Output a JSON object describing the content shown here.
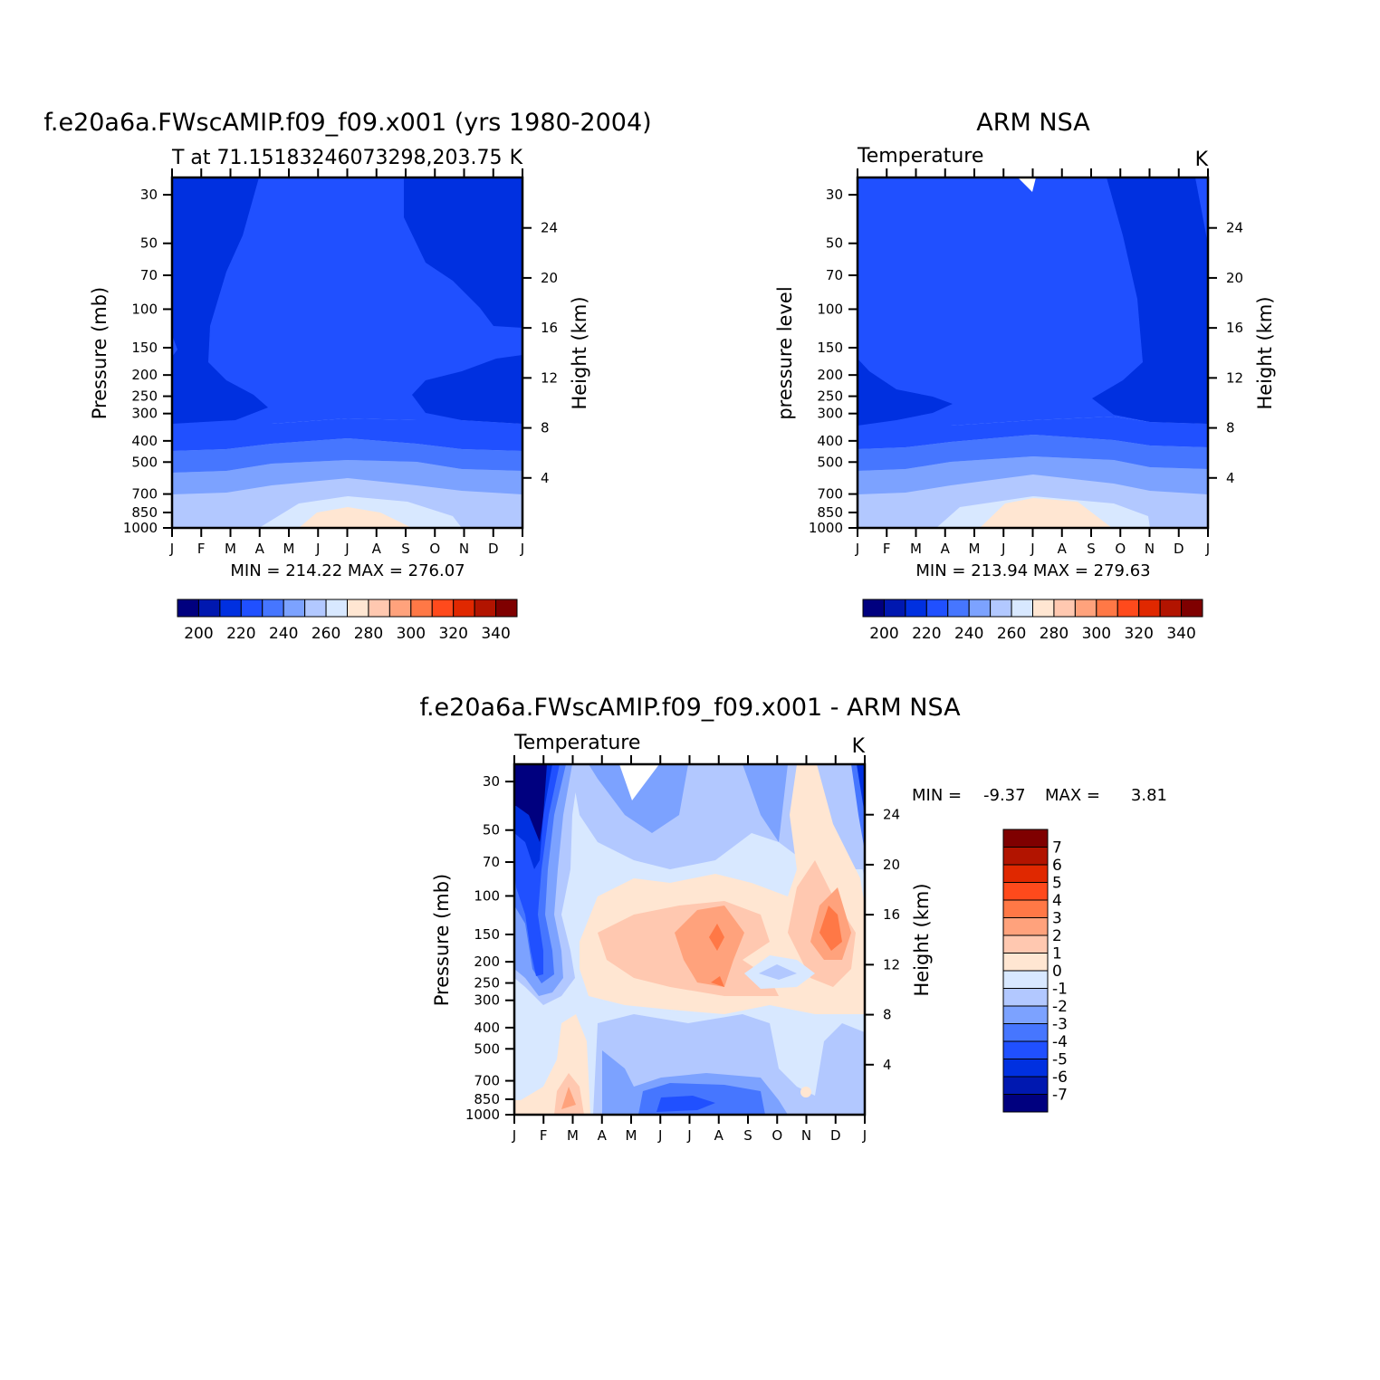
{
  "palette": [
    "#00007f",
    "#0018b0",
    "#0030e0",
    "#2050ff",
    "#4676ff",
    "#7ca2ff",
    "#b2c8ff",
    "#d8e8ff",
    "#ffe6d2",
    "#ffc8b0",
    "#ffa27c",
    "#ff7846",
    "#ff4a1c",
    "#e02800",
    "#b21400",
    "#7f0000"
  ],
  "chart_data": [
    {
      "type": "heatmap",
      "id": "model",
      "title": "f.e20a6a.FWscAMIP.f09_f09.x001 (yrs 1980-2004)",
      "subtitle_left": "T at 71.15183246073298,203.75",
      "subtitle_right": "K",
      "ylabel": "Pressure (mb)",
      "ylabel_right": "Height (km)",
      "x_ticks": [
        "J",
        "F",
        "M",
        "A",
        "M",
        "J",
        "J",
        "A",
        "S",
        "O",
        "N",
        "D",
        "J"
      ],
      "y_ticks": [
        30,
        50,
        70,
        100,
        150,
        200,
        250,
        300,
        400,
        500,
        700,
        850,
        1000
      ],
      "y_scale": "log",
      "ylim": [
        1000,
        25
      ],
      "height_ticks": [
        24,
        20,
        16,
        12,
        8,
        4
      ],
      "min": 214.22,
      "max": 276.07,
      "minmax_text": "MIN = 214.22 MAX = 276.07",
      "levels": [
        200,
        210,
        220,
        230,
        240,
        250,
        260,
        270,
        280,
        290,
        300,
        310,
        320,
        330,
        340
      ],
      "colorbar_labels": [
        "200",
        "220",
        "240",
        "260",
        "280",
        "300",
        "320",
        "340"
      ]
    },
    {
      "type": "heatmap",
      "id": "obs",
      "title": "ARM NSA",
      "subtitle_left": "Temperature",
      "subtitle_right": "K",
      "ylabel": "pressure level",
      "ylabel_right": "Height (km)",
      "x_ticks": [
        "J",
        "F",
        "M",
        "A",
        "M",
        "J",
        "J",
        "A",
        "S",
        "O",
        "N",
        "D",
        "J"
      ],
      "y_ticks": [
        30,
        50,
        70,
        100,
        150,
        200,
        250,
        300,
        400,
        500,
        700,
        850,
        1000
      ],
      "y_scale": "log",
      "ylim": [
        1000,
        25
      ],
      "height_ticks": [
        24,
        20,
        16,
        12,
        8,
        4
      ],
      "min": 213.94,
      "max": 279.63,
      "minmax_text": "MIN = 213.94 MAX = 279.63",
      "levels": [
        200,
        210,
        220,
        230,
        240,
        250,
        260,
        270,
        280,
        290,
        300,
        310,
        320,
        330,
        340
      ],
      "colorbar_labels": [
        "200",
        "220",
        "240",
        "260",
        "280",
        "300",
        "320",
        "340"
      ]
    },
    {
      "type": "heatmap",
      "id": "diff",
      "title": "f.e20a6a.FWscAMIP.f09_f09.x001 - ARM NSA",
      "subtitle_left": "Temperature",
      "subtitle_right": "K",
      "ylabel": "Pressure (mb)",
      "ylabel_right": "Height (km)",
      "x_ticks": [
        "J",
        "F",
        "M",
        "A",
        "M",
        "J",
        "J",
        "A",
        "S",
        "O",
        "N",
        "D",
        "J"
      ],
      "y_ticks": [
        30,
        50,
        70,
        100,
        150,
        200,
        250,
        300,
        400,
        500,
        700,
        850,
        1000
      ],
      "y_scale": "log",
      "ylim": [
        1000,
        25
      ],
      "height_ticks": [
        24,
        20,
        16,
        12,
        8,
        4
      ],
      "min": -9.37,
      "max": 3.81,
      "min_label": "MIN =",
      "min_value": "-9.37",
      "max_label": "MAX =",
      "max_value": "3.81",
      "levels": [
        -7,
        -6,
        -5,
        -4,
        -3,
        -2,
        -1,
        0,
        1,
        2,
        3,
        4,
        5,
        6,
        7
      ],
      "colorbar_labels": [
        "7",
        "6",
        "5",
        "4",
        "3",
        "2",
        "1",
        "0",
        "-1",
        "-2",
        "-3",
        "-4",
        "-5",
        "-6",
        "-7"
      ]
    }
  ]
}
